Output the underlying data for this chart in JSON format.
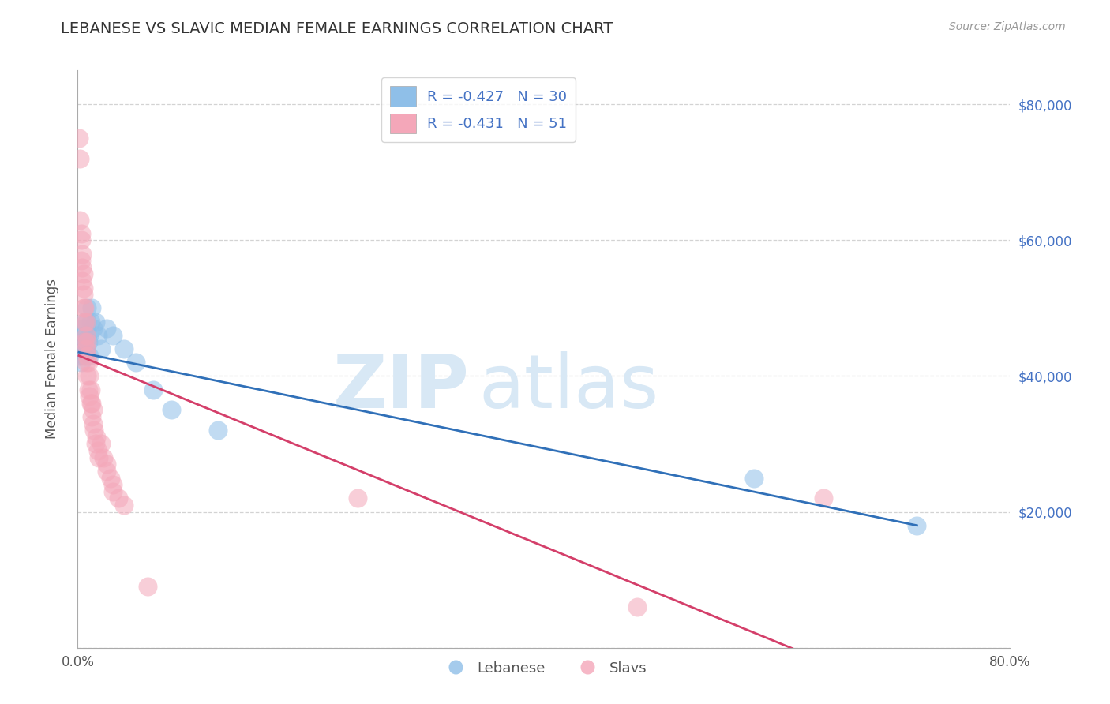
{
  "title": "LEBANESE VS SLAVIC MEDIAN FEMALE EARNINGS CORRELATION CHART",
  "source": "Source: ZipAtlas.com",
  "ylabel": "Median Female Earnings",
  "xlim": [
    0.0,
    0.8
  ],
  "ylim": [
    0,
    85000
  ],
  "yticks": [
    0,
    20000,
    40000,
    60000,
    80000
  ],
  "ytick_labels": [
    "",
    "$20,000",
    "$40,000",
    "$60,000",
    "$80,000"
  ],
  "xtick_labels": [
    "0.0%",
    "80.0%"
  ],
  "legend_r1": "R = -0.427",
  "legend_n1": "N = 30",
  "legend_r2": "R = -0.431",
  "legend_n2": "N = 51",
  "legend_label1": "Lebanese",
  "legend_label2": "Slavs",
  "blue_color": "#8fbfe8",
  "pink_color": "#f4a7b9",
  "blue_line_color": "#3070b8",
  "pink_line_color": "#d43f6a",
  "background_color": "#ffffff",
  "grid_color": "#c8c8c8",
  "title_color": "#333333",
  "watermark_color": "#d8e8f5",
  "watermark_text_zip": "ZIP",
  "watermark_text_atlas": "atlas",
  "axis_label_color": "#4472c4",
  "leb_x": [
    0.002,
    0.003,
    0.004,
    0.004,
    0.005,
    0.005,
    0.006,
    0.006,
    0.007,
    0.007,
    0.008,
    0.008,
    0.009,
    0.01,
    0.01,
    0.011,
    0.012,
    0.013,
    0.015,
    0.017,
    0.02,
    0.025,
    0.03,
    0.04,
    0.05,
    0.065,
    0.08,
    0.12,
    0.58,
    0.72
  ],
  "leb_y": [
    43000,
    42000,
    44000,
    46000,
    45000,
    47000,
    48000,
    43000,
    46000,
    44000,
    48000,
    50000,
    45000,
    46000,
    43000,
    48000,
    50000,
    47000,
    48000,
    46000,
    44000,
    47000,
    46000,
    44000,
    42000,
    38000,
    35000,
    32000,
    25000,
    18000
  ],
  "slav_x": [
    0.001,
    0.002,
    0.002,
    0.003,
    0.003,
    0.003,
    0.004,
    0.004,
    0.004,
    0.005,
    0.005,
    0.005,
    0.005,
    0.006,
    0.006,
    0.006,
    0.007,
    0.007,
    0.007,
    0.007,
    0.008,
    0.008,
    0.008,
    0.009,
    0.009,
    0.01,
    0.01,
    0.011,
    0.011,
    0.012,
    0.012,
    0.013,
    0.013,
    0.014,
    0.015,
    0.016,
    0.017,
    0.018,
    0.02,
    0.022,
    0.025,
    0.025,
    0.028,
    0.03,
    0.03,
    0.035,
    0.04,
    0.06,
    0.24,
    0.48,
    0.64
  ],
  "slav_y": [
    75000,
    72000,
    63000,
    61000,
    57000,
    60000,
    54000,
    56000,
    58000,
    52000,
    55000,
    50000,
    53000,
    48000,
    50000,
    45000,
    48000,
    46000,
    44000,
    42000,
    45000,
    43000,
    40000,
    42000,
    38000,
    40000,
    37000,
    38000,
    36000,
    36000,
    34000,
    35000,
    33000,
    32000,
    30000,
    31000,
    29000,
    28000,
    30000,
    28000,
    27000,
    26000,
    25000,
    23000,
    24000,
    22000,
    21000,
    9000,
    22000,
    6000,
    22000
  ]
}
